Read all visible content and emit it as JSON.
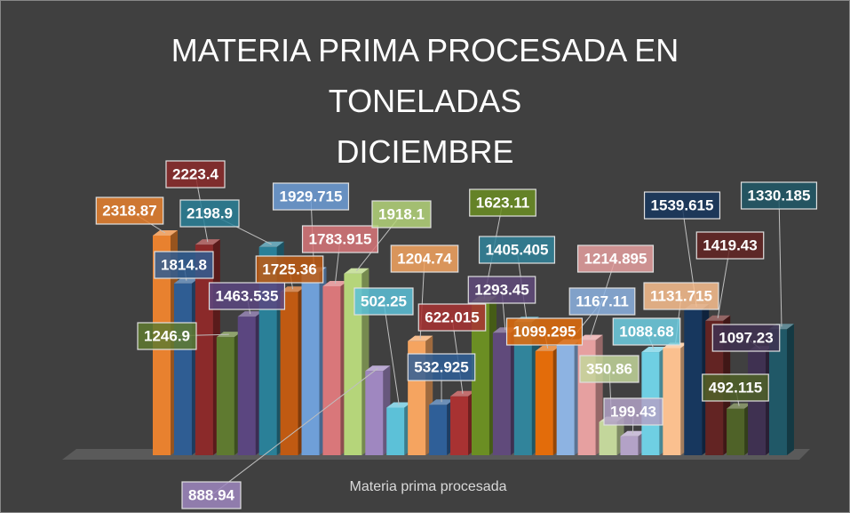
{
  "chart_data": {
    "type": "bar3d",
    "title": "MATERIA PRIMA PROCESADA EN\nTONELADAS\nDICIEMBRE",
    "xlabel": "Materia prima procesada",
    "values": [
      2318.87,
      1814.8,
      2223.4,
      1246.9,
      1463.535,
      2198.9,
      1725.36,
      1929.715,
      1783.915,
      1918.1,
      888.94,
      502.25,
      1204.74,
      532.925,
      622.015,
      1623.11,
      1293.45,
      1405.405,
      1099.295,
      1167.11,
      1214.895,
      350.86,
      199.43,
      1088.68,
      1131.715,
      1539.615,
      1419.43,
      492.115,
      1097.23,
      1330.185
    ],
    "colors": [
      "#e8812f",
      "#2f5d93",
      "#8b2a2a",
      "#5f7a30",
      "#5b4680",
      "#2a8098",
      "#c05a12",
      "#6f9fd8",
      "#d9777a",
      "#b5d57a",
      "#9f87c0",
      "#5cc1d8",
      "#f5a460",
      "#2f5f98",
      "#a83232",
      "#6b8e23",
      "#604a7b",
      "#31849b",
      "#e36c0a",
      "#8db3e2",
      "#e6a0a0",
      "#c3d69b",
      "#b3a2c7",
      "#6fcfe3",
      "#fac08f",
      "#17375e",
      "#632423",
      "#4f6228",
      "#3f3151",
      "#205867"
    ]
  }
}
